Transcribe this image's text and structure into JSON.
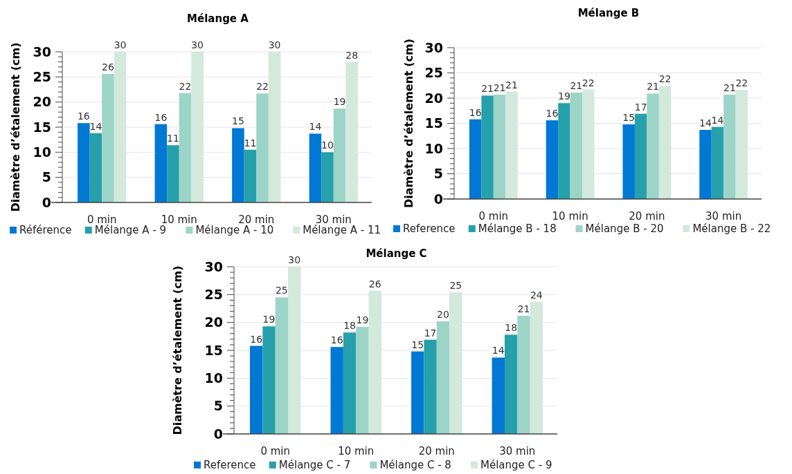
{
  "chart_data": [
    {
      "type": "bar",
      "title": "Mélange A",
      "ylabel": "Diamètre d’étalement (cm)",
      "categories": [
        "0 min",
        "10 min",
        "20 min",
        "30 min"
      ],
      "ylim": [
        0,
        30
      ],
      "yticks": [
        0,
        {
          "value": 1,
          "label": null
        },
        {
          "value": 2,
          "label": null
        },
        {
          "value": 3,
          "label": null
        },
        {
          "value": 4,
          "label": null
        },
        5,
        {
          "value": 6,
          "label": null
        },
        {
          "value": 7,
          "label": null
        },
        {
          "value": 8,
          "label": null
        },
        {
          "value": 9,
          "label": null
        },
        10,
        {
          "value": 11,
          "label": null
        },
        {
          "value": 12,
          "label": null
        },
        {
          "value": 13,
          "label": null
        },
        {
          "value": 14,
          "label": null
        },
        15,
        {
          "value": 16,
          "label": null
        },
        {
          "value": 17,
          "label": null
        },
        {
          "value": 18,
          "label": null
        },
        {
          "value": 19,
          "label": null
        },
        20,
        {
          "value": 21,
          "label": null
        },
        {
          "value": 22,
          "label": null
        },
        {
          "value": 23,
          "label": null
        },
        {
          "value": 24,
          "label": null
        },
        25,
        {
          "value": 26,
          "label": null
        },
        {
          "value": 27,
          "label": null
        },
        {
          "value": 28,
          "label": null
        },
        {
          "value": 29,
          "label": null
        },
        30
      ],
      "grid": "y",
      "legend": "bottom",
      "series": [
        {
          "name": "Référence",
          "color": "#0078d4",
          "values": [
            15.8,
            15.6,
            14.8,
            13.7
          ],
          "value_labels": [
            "16",
            "16",
            "15",
            "14"
          ]
        },
        {
          "name": "Mélange A - 9",
          "color": "#26a0ab",
          "values": [
            13.8,
            11.4,
            10.5,
            10.0
          ],
          "value_labels": [
            "14",
            "11",
            "11",
            "10"
          ]
        },
        {
          "name": "Mélange A - 10",
          "color": "#9dd4c8",
          "values": [
            25.6,
            21.8,
            21.7,
            18.7
          ],
          "value_labels": [
            "26",
            "22",
            "22",
            "19"
          ]
        },
        {
          "name": "Mélange A - 11",
          "color": "#d2e9db",
          "values": [
            30,
            30,
            30,
            28
          ],
          "value_labels": [
            "30",
            "30",
            "30",
            "28"
          ]
        }
      ]
    },
    {
      "type": "bar",
      "title": "Mélange B",
      "ylabel": "Diamètre d’étalement (cm)",
      "categories": [
        "0 min",
        "10 min",
        "20 min",
        "30 min"
      ],
      "ylim": [
        0,
        30
      ],
      "yticks": [
        0,
        {
          "value": 1,
          "label": null
        },
        {
          "value": 2,
          "label": null
        },
        {
          "value": 3,
          "label": null
        },
        {
          "value": 4,
          "label": null
        },
        5,
        {
          "value": 6,
          "label": null
        },
        {
          "value": 7,
          "label": null
        },
        {
          "value": 8,
          "label": null
        },
        {
          "value": 9,
          "label": null
        },
        10,
        {
          "value": 11,
          "label": null
        },
        {
          "value": 12,
          "label": null
        },
        {
          "value": 13,
          "label": null
        },
        {
          "value": 14,
          "label": null
        },
        15,
        {
          "value": 16,
          "label": null
        },
        {
          "value": 17,
          "label": null
        },
        {
          "value": 18,
          "label": null
        },
        {
          "value": 19,
          "label": null
        },
        20,
        {
          "value": 21,
          "label": null
        },
        {
          "value": 22,
          "label": null
        },
        {
          "value": 23,
          "label": null
        },
        {
          "value": 24,
          "label": null
        },
        25,
        {
          "value": 26,
          "label": null
        },
        {
          "value": 27,
          "label": null
        },
        {
          "value": 28,
          "label": null
        },
        {
          "value": 29,
          "label": null
        },
        30
      ],
      "grid": "y",
      "legend": "bottom",
      "series": [
        {
          "name": "Reference",
          "color": "#0078d4",
          "values": [
            15.8,
            15.6,
            14.8,
            13.7
          ],
          "value_labels": [
            "16",
            "16",
            "15",
            "14"
          ]
        },
        {
          "name": "Mélange B - 18",
          "color": "#26a0ab",
          "values": [
            20.5,
            19.0,
            16.9,
            14.3
          ],
          "value_labels": [
            "21",
            "19",
            "17",
            "14"
          ]
        },
        {
          "name": "Mélange B - 20",
          "color": "#9dd4c8",
          "values": [
            20.7,
            21.1,
            20.9,
            20.7
          ],
          "value_labels": [
            "21",
            "21",
            "21",
            "21"
          ]
        },
        {
          "name": "Mélange B - 22",
          "color": "#d2e9db",
          "values": [
            21.3,
            21.7,
            22.4,
            21.6
          ],
          "value_labels": [
            "21",
            "22",
            "22",
            "22"
          ]
        }
      ]
    },
    {
      "type": "bar",
      "title": "Mélange C",
      "ylabel": "Diamètre d’étalement (cm)",
      "categories": [
        "0 min",
        "10 min",
        "20 min",
        "30 min"
      ],
      "ylim": [
        0,
        30
      ],
      "yticks": [
        0,
        {
          "value": 1,
          "label": null
        },
        {
          "value": 2,
          "label": null
        },
        {
          "value": 3,
          "label": null
        },
        {
          "value": 4,
          "label": null
        },
        5,
        {
          "value": 6,
          "label": null
        },
        {
          "value": 7,
          "label": null
        },
        {
          "value": 8,
          "label": null
        },
        {
          "value": 9,
          "label": null
        },
        10,
        {
          "value": 11,
          "label": null
        },
        {
          "value": 12,
          "label": null
        },
        {
          "value": 13,
          "label": null
        },
        {
          "value": 14,
          "label": null
        },
        15,
        {
          "value": 16,
          "label": null
        },
        {
          "value": 17,
          "label": null
        },
        {
          "value": 18,
          "label": null
        },
        {
          "value": 19,
          "label": null
        },
        20,
        {
          "value": 21,
          "label": null
        },
        {
          "value": 22,
          "label": null
        },
        {
          "value": 23,
          "label": null
        },
        {
          "value": 24,
          "label": null
        },
        25,
        {
          "value": 26,
          "label": null
        },
        {
          "value": 27,
          "label": null
        },
        {
          "value": 28,
          "label": null
        },
        {
          "value": 29,
          "label": null
        },
        30
      ],
      "grid": "y",
      "legend": "bottom",
      "series": [
        {
          "name": "Reference",
          "color": "#0078d4",
          "values": [
            15.8,
            15.6,
            14.8,
            13.7
          ],
          "value_labels": [
            "16",
            "16",
            "15",
            "14"
          ]
        },
        {
          "name": "Mélange C - 7",
          "color": "#26a0ab",
          "values": [
            19.3,
            18.2,
            16.9,
            17.8
          ],
          "value_labels": [
            "19",
            "18",
            "17",
            "18"
          ]
        },
        {
          "name": "Mélange C - 8",
          "color": "#9dd4c8",
          "values": [
            24.5,
            19.2,
            20.2,
            21.2
          ],
          "value_labels": [
            "25",
            "19",
            "20",
            "21"
          ]
        },
        {
          "name": "Mélange C - 9",
          "color": "#d2e9db",
          "values": [
            30,
            25.7,
            25.4,
            23.7
          ],
          "value_labels": [
            "30",
            "26",
            "25",
            "24"
          ]
        }
      ]
    }
  ]
}
